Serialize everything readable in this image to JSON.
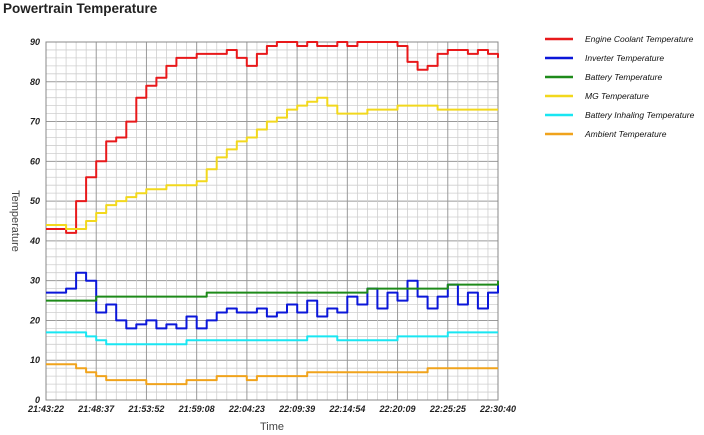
{
  "chart_data": {
    "type": "line",
    "title": "Powertrain Temperature",
    "xlabel": "Time",
    "ylabel": "Temperature",
    "ylim": [
      0,
      90
    ],
    "yticks": [
      0,
      10,
      20,
      30,
      40,
      50,
      60,
      70,
      80,
      90
    ],
    "xlim": [
      "21:43:22",
      "22:30:40"
    ],
    "xticks": [
      "21:43:22",
      "21:48:37",
      "21:53:52",
      "21:59:08",
      "22:04:23",
      "22:09:39",
      "22:14:54",
      "22:20:09",
      "22:25:25",
      "22:30:40"
    ],
    "grid": true,
    "legend_position": "right",
    "x": [
      "21:43:22",
      "21:44:25",
      "21:45:28",
      "21:46:31",
      "21:47:34",
      "21:48:37",
      "21:49:40",
      "21:50:43",
      "21:51:46",
      "21:52:49",
      "21:53:52",
      "21:54:55",
      "21:55:58",
      "21:57:01",
      "21:58:04",
      "21:59:08",
      "22:00:11",
      "22:01:14",
      "22:02:17",
      "22:03:20",
      "22:04:23",
      "22:05:26",
      "22:06:29",
      "22:07:32",
      "22:08:35",
      "22:09:39",
      "22:10:42",
      "22:11:45",
      "22:12:48",
      "22:13:51",
      "22:14:54",
      "22:15:57",
      "22:17:00",
      "22:18:03",
      "22:19:06",
      "22:20:09",
      "22:21:12",
      "22:22:15",
      "22:23:18",
      "22:24:21",
      "22:25:25",
      "22:26:28",
      "22:27:31",
      "22:28:34",
      "22:29:37",
      "22:30:40"
    ],
    "series": [
      {
        "name": "Engine Coolant Temperature",
        "color": "#e8191b",
        "values": [
          43,
          43,
          42,
          50,
          56,
          60,
          65,
          66,
          70,
          76,
          79,
          81,
          84,
          86,
          86,
          87,
          87,
          87,
          88,
          86,
          84,
          87,
          89,
          90,
          90,
          89,
          90,
          89,
          89,
          90,
          89,
          90,
          90,
          90,
          90,
          89,
          85,
          83,
          84,
          87,
          88,
          88,
          87,
          88,
          87,
          86
        ]
      },
      {
        "name": "Inverter Temperature",
        "color": "#0b17d9",
        "values": [
          27,
          27,
          28,
          32,
          30,
          22,
          24,
          20,
          18,
          19,
          20,
          18,
          19,
          18,
          21,
          18,
          20,
          22,
          23,
          22,
          22,
          23,
          21,
          22,
          24,
          22,
          25,
          21,
          23,
          22,
          26,
          24,
          28,
          23,
          27,
          25,
          30,
          26,
          23,
          26,
          29,
          24,
          27,
          23,
          27,
          30
        ]
      },
      {
        "name": "Battery Temperature",
        "color": "#1e8a1a",
        "values": [
          25,
          25,
          25,
          25,
          25,
          26,
          26,
          26,
          26,
          26,
          26,
          26,
          26,
          26,
          26,
          26,
          27,
          27,
          27,
          27,
          27,
          27,
          27,
          27,
          27,
          27,
          27,
          27,
          27,
          27,
          27,
          27,
          28,
          28,
          28,
          28,
          28,
          28,
          28,
          28,
          29,
          29,
          29,
          29,
          29,
          30
        ]
      },
      {
        "name": "MG Temperature",
        "color": "#f2d81d",
        "values": [
          44,
          44,
          43,
          43,
          45,
          47,
          49,
          50,
          51,
          52,
          53,
          53,
          54,
          54,
          54,
          55,
          58,
          61,
          63,
          65,
          66,
          68,
          70,
          71,
          73,
          74,
          75,
          76,
          74,
          72,
          72,
          72,
          73,
          73,
          73,
          74,
          74,
          74,
          74,
          73,
          73,
          73,
          73,
          73,
          73,
          73
        ]
      },
      {
        "name": "Battery Inhaling Temperature",
        "color": "#19e6f2",
        "values": [
          17,
          17,
          17,
          17,
          16,
          15,
          14,
          14,
          14,
          14,
          14,
          14,
          14,
          14,
          15,
          15,
          15,
          15,
          15,
          15,
          15,
          15,
          15,
          15,
          15,
          15,
          16,
          16,
          16,
          15,
          15,
          15,
          15,
          15,
          15,
          16,
          16,
          16,
          16,
          16,
          17,
          17,
          17,
          17,
          17,
          17
        ]
      },
      {
        "name": "Ambient Temperature",
        "color": "#f0a31c",
        "values": [
          9,
          9,
          9,
          8,
          7,
          6,
          5,
          5,
          5,
          5,
          4,
          4,
          4,
          4,
          5,
          5,
          5,
          6,
          6,
          6,
          5,
          6,
          6,
          6,
          6,
          6,
          7,
          7,
          7,
          7,
          7,
          7,
          7,
          7,
          7,
          7,
          7,
          7,
          8,
          8,
          8,
          8,
          8,
          8,
          8,
          8
        ]
      }
    ]
  }
}
